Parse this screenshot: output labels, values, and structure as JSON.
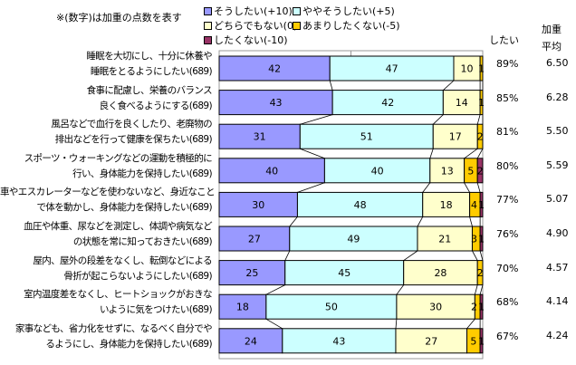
{
  "note": "※(数字)は加重の点数を表す",
  "header_want": "したい",
  "header_avg_line1": "加重",
  "header_avg_line2": "平均",
  "chart_data": {
    "type": "bar",
    "stacked": true,
    "orientation": "horizontal",
    "xlim": [
      0,
      100
    ],
    "series": [
      {
        "name": "そうしたい(+10)",
        "color": "#9999ff"
      },
      {
        "name": "ややそうしたい(+5)",
        "color": "#ccffff"
      },
      {
        "name": "どちらでもない(0)",
        "color": "#ffffcc"
      },
      {
        "name": "あまりしたくない(-5)",
        "color": "#ffcc00"
      },
      {
        "name": "したくない(-10)",
        "color": "#993366"
      }
    ],
    "rows": [
      {
        "line1": "睡眠を大切にし、十分に休養や",
        "line2": "睡眠をとるようにしたい(689)",
        "values": [
          42,
          47,
          10,
          1,
          0
        ],
        "want": "89%",
        "avg": "6.50"
      },
      {
        "line1": "食事に配慮し、栄養のバランス",
        "line2": "良く食べるようにする(689)",
        "values": [
          43,
          42,
          14,
          1,
          0
        ],
        "want": "85%",
        "avg": "6.28"
      },
      {
        "line1": "風呂などで血行を良くしたり、老廃物の",
        "line2": "排出などを行って健康を保ちたい(689)",
        "values": [
          31,
          51,
          17,
          2,
          0
        ],
        "want": "81%",
        "avg": "5.50"
      },
      {
        "line1": "スポーツ・ウォーキングなどの運動を積極的に",
        "line2": "行い、身体能力を保持したい(689)",
        "values": [
          40,
          40,
          13,
          5,
          2
        ],
        "want": "80%",
        "avg": "5.59"
      },
      {
        "line1": "車やエスカレーターなどを使わないなど、身近なこと",
        "line2": "で体を動かし、身体能力を保持したい(689)",
        "values": [
          30,
          48,
          18,
          4,
          1
        ],
        "want": "77%",
        "avg": "5.07"
      },
      {
        "line1": "血圧や体重、尿などを測定し、体調や病気など",
        "line2": "の状態を常に知っておきたい(689)",
        "values": [
          27,
          49,
          21,
          3,
          1
        ],
        "want": "76%",
        "avg": "4.90"
      },
      {
        "line1": "屋内、屋外の段差をなくし、転倒などによる",
        "line2": "骨折が起こらないようにしたい(689)",
        "values": [
          25,
          45,
          28,
          2,
          0
        ],
        "want": "70%",
        "avg": "4.57"
      },
      {
        "line1": "室内温度差をなくし、ヒートショックがおきな",
        "line2": "いように気をつけたい(689)",
        "values": [
          18,
          50,
          30,
          2,
          1
        ],
        "want": "68%",
        "avg": "4.14"
      },
      {
        "line1": "家事なども、省力化をせずに、なるべく自分でや",
        "line2": "るようにし、身体能力を保持したい(689)",
        "values": [
          24,
          43,
          27,
          5,
          1
        ],
        "want": "67%",
        "avg": "4.24"
      }
    ]
  }
}
